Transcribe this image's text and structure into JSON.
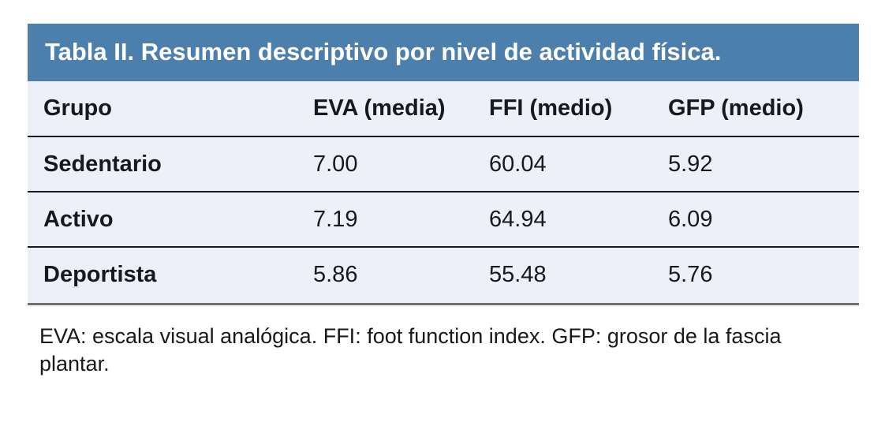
{
  "title": "Tabla II. Resumen descriptivo por nivel de actividad física.",
  "table": {
    "columns": [
      "Grupo",
      "EVA (media)",
      "FFI (medio)",
      "GFP (medio)"
    ],
    "rows": [
      {
        "group": "Sedentario",
        "eva": "7.00",
        "ffi": "60.04",
        "gfp": "5.92"
      },
      {
        "group": "Activo",
        "eva": "7.19",
        "ffi": "64.94",
        "gfp": "6.09"
      },
      {
        "group": "Deportista",
        "eva": "5.86",
        "ffi": "55.48",
        "gfp": "5.76"
      }
    ]
  },
  "footnote": "EVA: escala visual analógica. FFI: foot function index. GFP: grosor de la fascia plantar.",
  "colors": {
    "title_band_bg": "#4d7fac",
    "title_text": "#ffffff",
    "table_body_bg": "#edf0f8",
    "row_divider": "#17191c",
    "bottom_border": "#6e7277",
    "body_text": "#17191c",
    "page_bg": "#ffffff"
  }
}
